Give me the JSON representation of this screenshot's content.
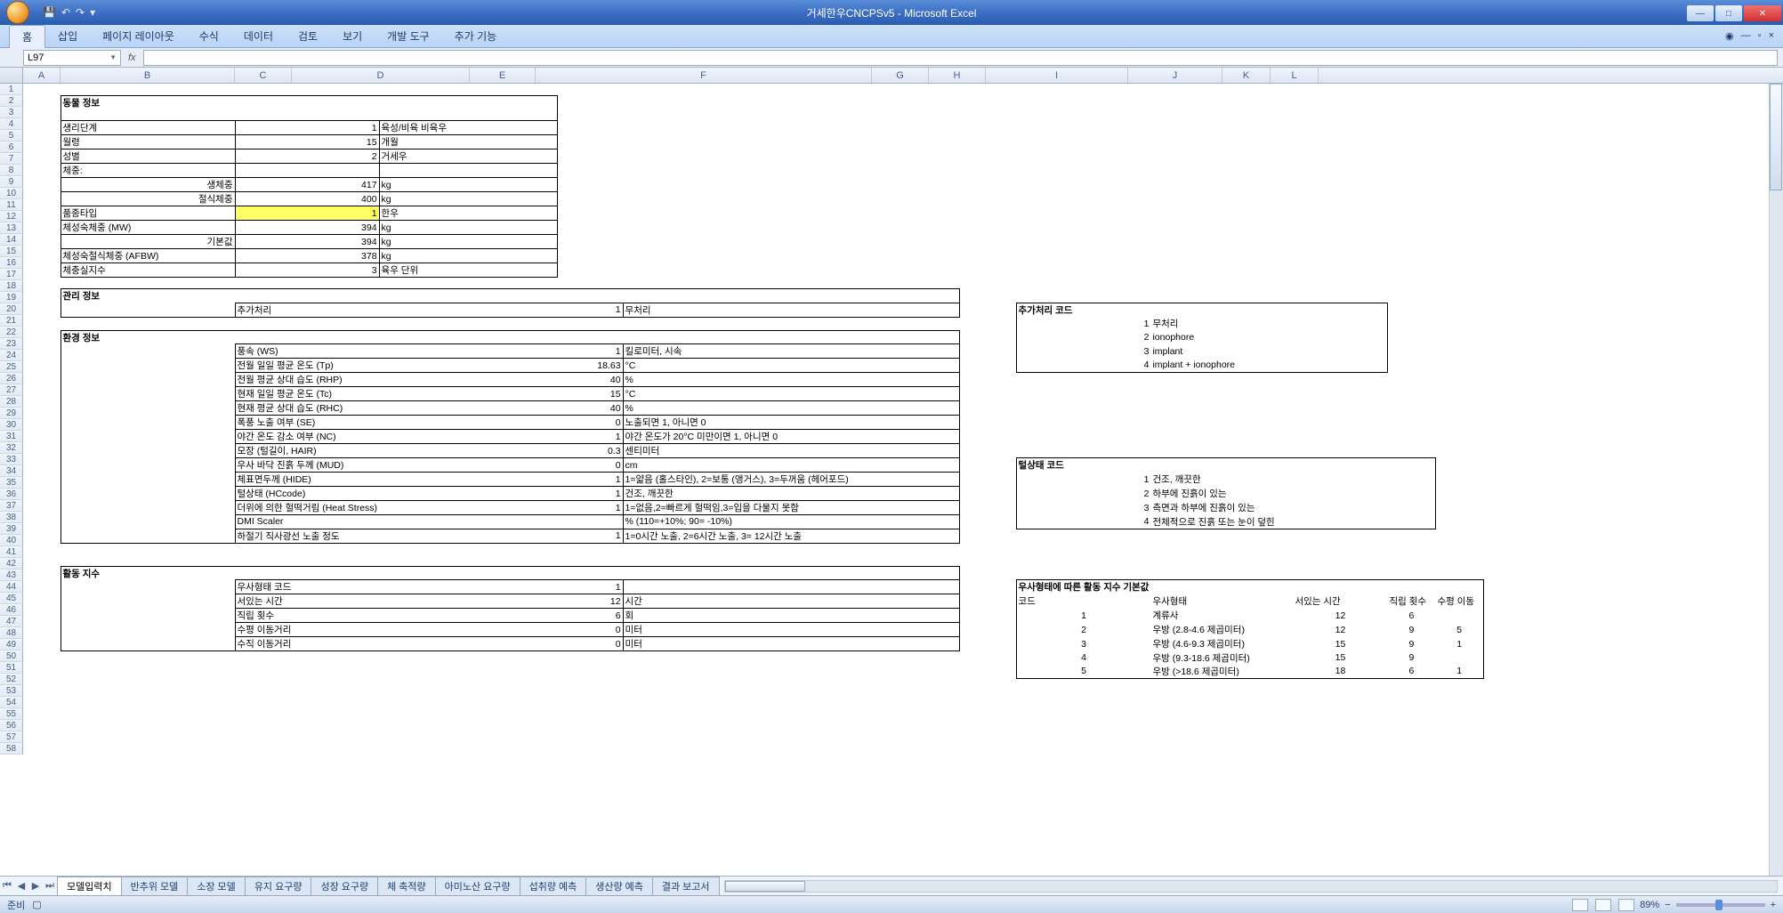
{
  "app": {
    "title": "거세한우CNCPSv5 - Microsoft Excel",
    "namebox": "L97",
    "status": "준비",
    "zoom": "89%"
  },
  "ribbon": {
    "tabs": [
      "홈",
      "삽입",
      "페이지 레이아웃",
      "수식",
      "데이터",
      "검토",
      "보기",
      "개발 도구",
      "추가 기능"
    ]
  },
  "columns": [
    "A",
    "B",
    "C",
    "D",
    "E",
    "F",
    "G",
    "H",
    "I",
    "J",
    "K",
    "L"
  ],
  "section_animal": {
    "title": "동물 정보",
    "rows": [
      {
        "label": "생리단계",
        "val": "1",
        "unit": "육성/비육 비육우"
      },
      {
        "label": "월령",
        "val": "15",
        "unit": "개월"
      },
      {
        "label": "성별",
        "val": "2",
        "unit": "거세우"
      },
      {
        "label": "체중:",
        "val": "",
        "unit": ""
      },
      {
        "label": "생체중",
        "labelAlign": "right",
        "val": "417",
        "unit": "kg"
      },
      {
        "label": "절식체중",
        "labelAlign": "right",
        "val": "400",
        "unit": "kg"
      },
      {
        "label": "품종타입",
        "val": "1",
        "unit": "한우",
        "hl": true
      },
      {
        "label": "체성숙체중 (MW)",
        "val": "394",
        "unit": "kg"
      },
      {
        "label": "기본값",
        "labelAlign": "right",
        "val": "394",
        "unit": "kg"
      },
      {
        "label": "체성숙절식체중 (AFBW)",
        "val": "378",
        "unit": "kg"
      },
      {
        "label": "체충실지수",
        "val": "3",
        "unit": "육우 단위"
      }
    ]
  },
  "section_mgmt": {
    "title": "관리 정보",
    "label": "추가처리",
    "val": "1",
    "desc": "무처리"
  },
  "section_env": {
    "title": "환경 정보",
    "rows": [
      {
        "label": "풍속 (WS)",
        "val": "1",
        "desc": "킬로미터, 시속"
      },
      {
        "label": "전월 일일 평균 온도 (Tp)",
        "val": "18.63",
        "desc": "°C"
      },
      {
        "label": "전월 평균 상대 습도 (RHP)",
        "val": "40",
        "desc": "%"
      },
      {
        "label": "현재 일일 평균 온도 (Tc)",
        "val": "15",
        "desc": "°C"
      },
      {
        "label": "현재 평균 상대 습도 (RHC)",
        "val": "40",
        "desc": "%"
      },
      {
        "label": "폭풍 노출 여부 (SE)",
        "val": "0",
        "desc": "노출되면 1, 아니면 0"
      },
      {
        "label": "야간 온도 감소 여부 (NC)",
        "val": "1",
        "desc": "야간 온도가 20°C 미만이면 1, 아니면 0"
      },
      {
        "label": "모장 (털길이, HAIR)",
        "val": "0.3",
        "desc": "센티미터"
      },
      {
        "label": "우사 바닥 진흙 두께 (MUD)",
        "val": "0",
        "desc": "cm"
      },
      {
        "label": "체표면두께 (HIDE)",
        "val": "1",
        "desc": "1=얇음 (홀스타인), 2=보통 (앵거스), 3=두꺼움 (헤어포드)"
      },
      {
        "label": "털상태 (HCcode)",
        "val": "1",
        "desc": "건조, 깨끗한"
      },
      {
        "label": "더위에 의한 헐떡거림 (Heat Stress)",
        "val": "1",
        "desc": "1=없음,2=빠르게 헐떡임,3=입을 다물지 못함"
      },
      {
        "label": "DMI Scaler",
        "val": "",
        "desc": "% (110=+10%; 90= -10%)"
      },
      {
        "label": "하절기 직사광선 노출 정도",
        "val": "1",
        "desc": "1=0시간 노출, 2=6시간 노출, 3= 12시간 노출"
      }
    ]
  },
  "section_act": {
    "title": "활동 지수",
    "rows": [
      {
        "label": "우사형태 코드",
        "val": "1",
        "desc": ""
      },
      {
        "label": "서있는 시간",
        "val": "12",
        "desc": "시간"
      },
      {
        "label": "직립 횟수",
        "val": "6",
        "desc": "회"
      },
      {
        "label": "수평 이동거리",
        "val": "0",
        "desc": "미터"
      },
      {
        "label": "수직 이동거리",
        "val": "0",
        "desc": "미터"
      }
    ]
  },
  "codes_add": {
    "title": "추가처리 코드",
    "items": [
      {
        "n": "1",
        "t": "무처리"
      },
      {
        "n": "2",
        "t": "ionophore"
      },
      {
        "n": "3",
        "t": "implant"
      },
      {
        "n": "4",
        "t": "implant + ionophore"
      }
    ]
  },
  "codes_hair": {
    "title": "털상태 코드",
    "items": [
      {
        "n": "1",
        "t": "건조, 깨끗한"
      },
      {
        "n": "2",
        "t": "하부에 진흙이 있는"
      },
      {
        "n": "3",
        "t": "측면과 하부에 진흙이 있는"
      },
      {
        "n": "4",
        "t": "전체적으로 진흙 또는 눈이 덮힌"
      }
    ]
  },
  "codes_barn": {
    "title": "우사형태에 따른 활동 지수 기본값",
    "head": {
      "c1": "코드",
      "c2": "우사형태",
      "c3": "서있는 시간",
      "c4": "직립 횟수",
      "c5": "수평 이동"
    },
    "rows": [
      {
        "c1": "1",
        "c2": "계류사",
        "c3": "12",
        "c4": "6",
        "c5": ""
      },
      {
        "c1": "2",
        "c2": "우방 (2.8-4.6 제곱미터)",
        "c3": "12",
        "c4": "9",
        "c5": "5"
      },
      {
        "c1": "3",
        "c2": "우방 (4.6-9.3 제곱미터)",
        "c3": "15",
        "c4": "9",
        "c5": "1"
      },
      {
        "c1": "4",
        "c2": "우방 (9.3-18.6 제곱미터)",
        "c3": "15",
        "c4": "9",
        "c5": ""
      },
      {
        "c1": "5",
        "c2": "우방 (>18.6 제곱미터)",
        "c3": "18",
        "c4": "6",
        "c5": "1"
      }
    ]
  },
  "sheets": [
    "모델입력치",
    "반추위 모델",
    "소장 모델",
    "유지 요구량",
    "성장 요구량",
    "체 축적량",
    "아미노산 요구량",
    "섭취량 예측",
    "생산량 예측",
    "결과 보고서"
  ]
}
